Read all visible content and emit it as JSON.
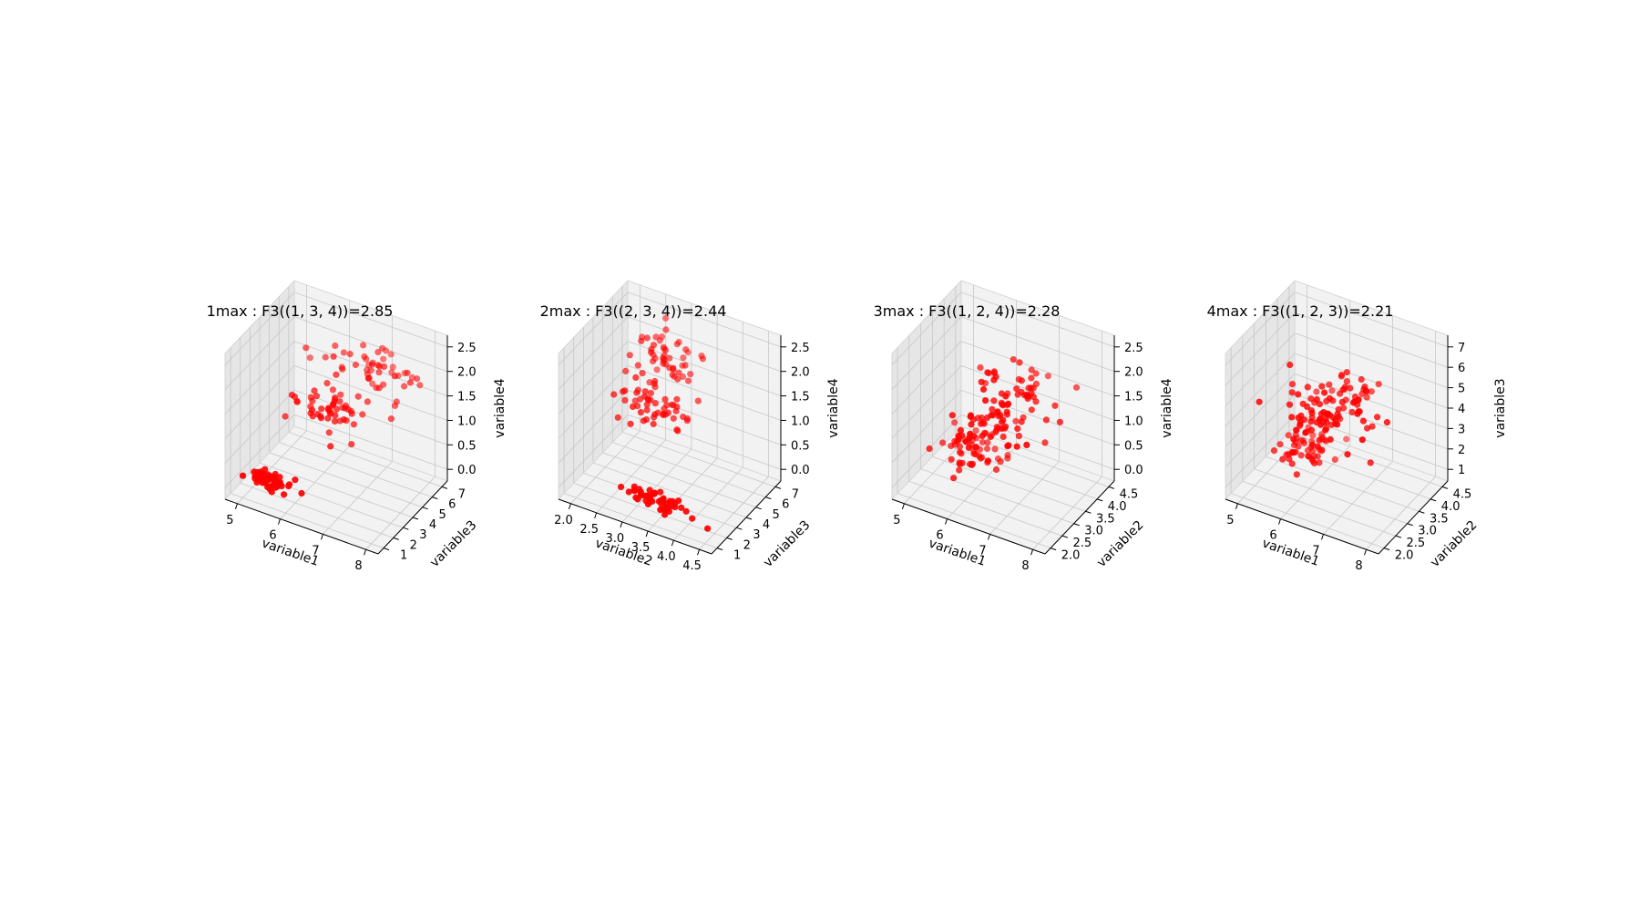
{
  "point_color": "#ff0000",
  "pane_colors": {
    "floor": "#f2f2f2",
    "back": "#f2f2f2",
    "side": "#e6e6e6",
    "grid": "#c7c7c7"
  },
  "chart_data": [
    {
      "type": "scatter",
      "title": "1max : F3((1, 3, 4))=2.85",
      "xlabel": "variable1",
      "ylabel": "variable3",
      "zlabel": "variable4",
      "xlim": [
        4.3,
        7.9
      ],
      "ylim": [
        1.0,
        6.9
      ],
      "zlim": [
        0.1,
        2.5
      ],
      "xticks": [
        "5",
        "6",
        "7",
        "8"
      ],
      "yticks": [
        "1",
        "2",
        "3",
        "4",
        "5",
        "6",
        "7"
      ],
      "zticks": [
        "0.0",
        "0.5",
        "1.0",
        "1.5",
        "2.0",
        "2.5"
      ],
      "clusters": [
        {
          "n": 50,
          "x": [
            5.0,
            0.35
          ],
          "y": [
            1.46,
            0.17
          ],
          "z": [
            0.25,
            0.1
          ]
        },
        {
          "n": 50,
          "x": [
            5.9,
            0.5
          ],
          "y": [
            4.3,
            0.45
          ],
          "z": [
            1.33,
            0.2
          ]
        },
        {
          "n": 50,
          "x": [
            6.6,
            0.6
          ],
          "y": [
            5.55,
            0.55
          ],
          "z": [
            2.03,
            0.27
          ]
        }
      ]
    },
    {
      "type": "scatter",
      "title": "2max : F3((2, 3, 4))=2.44",
      "xlabel": "variable2",
      "ylabel": "variable3",
      "zlabel": "variable4",
      "xlim": [
        2.0,
        4.4
      ],
      "ylim": [
        1.0,
        6.9
      ],
      "zlim": [
        0.1,
        2.5
      ],
      "xticks": [
        "2.0",
        "2.5",
        "3.0",
        "3.5",
        "4.0",
        "4.5"
      ],
      "yticks": [
        "1",
        "2",
        "3",
        "4",
        "5",
        "6",
        "7"
      ],
      "zticks": [
        "0.0",
        "0.5",
        "1.0",
        "1.5",
        "2.0",
        "2.5"
      ],
      "clusters": [
        {
          "n": 50,
          "x": [
            3.43,
            0.38
          ],
          "y": [
            1.46,
            0.17
          ],
          "z": [
            0.25,
            0.1
          ]
        },
        {
          "n": 50,
          "x": [
            2.77,
            0.31
          ],
          "y": [
            4.3,
            0.45
          ],
          "z": [
            1.33,
            0.2
          ]
        },
        {
          "n": 50,
          "x": [
            2.97,
            0.32
          ],
          "y": [
            5.55,
            0.55
          ],
          "z": [
            2.03,
            0.27
          ]
        }
      ]
    },
    {
      "type": "scatter",
      "title": "3max : F3((1, 2, 4))=2.28",
      "xlabel": "variable1",
      "ylabel": "variable2",
      "zlabel": "variable4",
      "xlim": [
        4.3,
        7.9
      ],
      "ylim": [
        2.0,
        4.4
      ],
      "zlim": [
        0.1,
        2.5
      ],
      "xticks": [
        "5",
        "6",
        "7",
        "8"
      ],
      "yticks": [
        "2.0",
        "2.5",
        "3.0",
        "3.5",
        "4.0",
        "4.5"
      ],
      "zticks": [
        "0.0",
        "0.5",
        "1.0",
        "1.5",
        "2.0",
        "2.5"
      ],
      "clusters": [
        {
          "n": 50,
          "x": [
            5.0,
            0.35
          ],
          "y": [
            3.43,
            0.38
          ],
          "z": [
            0.25,
            0.1
          ]
        },
        {
          "n": 50,
          "x": [
            5.9,
            0.5
          ],
          "y": [
            2.77,
            0.31
          ],
          "z": [
            1.33,
            0.2
          ]
        },
        {
          "n": 50,
          "x": [
            6.6,
            0.6
          ],
          "y": [
            2.97,
            0.32
          ],
          "z": [
            2.03,
            0.27
          ]
        }
      ]
    },
    {
      "type": "scatter",
      "title": "4max : F3((1, 2, 3))=2.21",
      "xlabel": "variable1",
      "ylabel": "variable2",
      "zlabel": "variable3",
      "xlim": [
        4.3,
        7.9
      ],
      "ylim": [
        2.0,
        4.4
      ],
      "zlim": [
        1.0,
        6.9
      ],
      "xticks": [
        "5",
        "6",
        "7",
        "8"
      ],
      "yticks": [
        "2.0",
        "2.5",
        "3.0",
        "3.5",
        "4.0",
        "4.5"
      ],
      "zticks": [
        "1",
        "2",
        "3",
        "4",
        "5",
        "6",
        "7"
      ],
      "clusters": [
        {
          "n": 50,
          "x": [
            5.0,
            0.35
          ],
          "y": [
            3.43,
            0.38
          ],
          "z": [
            1.46,
            0.17
          ]
        },
        {
          "n": 50,
          "x": [
            5.9,
            0.5
          ],
          "y": [
            2.77,
            0.31
          ],
          "z": [
            4.3,
            0.45
          ]
        },
        {
          "n": 50,
          "x": [
            6.6,
            0.6
          ],
          "y": [
            2.97,
            0.32
          ],
          "z": [
            5.55,
            0.55
          ]
        }
      ]
    }
  ]
}
